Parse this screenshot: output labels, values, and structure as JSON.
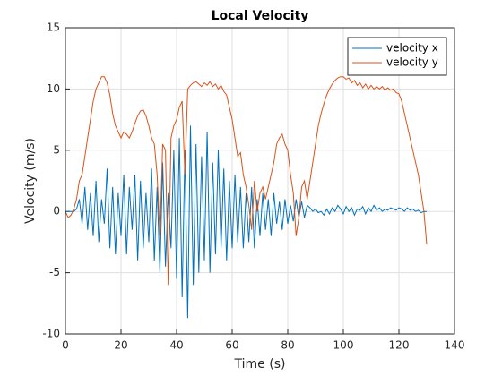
{
  "chart_data": {
    "type": "line",
    "title": "Local Velocity",
    "xlabel": "Time (s)",
    "ylabel": "Velocity (m/s)",
    "x": [
      0,
      1,
      2,
      3,
      4,
      5,
      6,
      7,
      8,
      9,
      10,
      11,
      12,
      13,
      14,
      15,
      16,
      17,
      18,
      19,
      20,
      21,
      22,
      23,
      24,
      25,
      26,
      27,
      28,
      29,
      30,
      31,
      32,
      33,
      34,
      35,
      36,
      37,
      38,
      39,
      40,
      41,
      42,
      43,
      44,
      45,
      46,
      47,
      48,
      49,
      50,
      51,
      52,
      53,
      54,
      55,
      56,
      57,
      58,
      59,
      60,
      61,
      62,
      63,
      64,
      65,
      66,
      67,
      68,
      69,
      70,
      71,
      72,
      73,
      74,
      75,
      76,
      77,
      78,
      79,
      80,
      81,
      82,
      83,
      84,
      85,
      86,
      87,
      88,
      89,
      90,
      91,
      92,
      93,
      94,
      95,
      96,
      97,
      98,
      99,
      100,
      101,
      102,
      103,
      104,
      105,
      106,
      107,
      108,
      109,
      110,
      111,
      112,
      113,
      114,
      115,
      116,
      117,
      118,
      119,
      120,
      121,
      122,
      123,
      124,
      125,
      126,
      127,
      128,
      129,
      130
    ],
    "series": [
      {
        "name": "velocity x",
        "color": "#0072bd",
        "values": [
          0,
          0,
          0,
          0,
          0.2,
          1,
          -1,
          2,
          -1.5,
          1.5,
          -2,
          2.5,
          -2.5,
          1,
          -1,
          3.5,
          -3,
          2,
          -3.5,
          1.5,
          -2,
          3,
          -3.5,
          2,
          -1.5,
          3,
          -4,
          2.5,
          -3,
          1.5,
          -2.5,
          3.5,
          -4,
          2,
          -5,
          4,
          -4.5,
          1.5,
          -3,
          5,
          -5.5,
          6,
          -7,
          5,
          -8.7,
          7,
          -6,
          5.5,
          -5,
          4.5,
          -4,
          6.5,
          -5,
          4,
          -3.5,
          5,
          -3,
          3.5,
          -4,
          2.5,
          -3,
          3,
          -2.5,
          2,
          -3,
          1.5,
          -2.5,
          2,
          -3,
          1,
          -2,
          1.5,
          -1.5,
          1,
          -2,
          1.5,
          -1,
          0.8,
          -1.5,
          1,
          -1,
          0.5,
          -0.8,
          1,
          -0.5,
          0.8,
          -0.5,
          0.5,
          0.3,
          0,
          0.2,
          -0.1,
          0,
          -0.3,
          0.2,
          -0.2,
          0.3,
          0,
          0.5,
          0.2,
          -0.2,
          0.4,
          0,
          0.3,
          -0.3,
          0.2,
          0.1,
          0.4,
          -0.2,
          0.3,
          0,
          0.5,
          0.1,
          0.3,
          0,
          0.2,
          0.1,
          0.3,
          0.2,
          0.1,
          0.3,
          0.2,
          0,
          0.3,
          0.1,
          0.2,
          0,
          0.1,
          -0.1,
          0,
          0
        ]
      },
      {
        "name": "velocity y",
        "color": "#d95319",
        "values": [
          0,
          -0.5,
          -0.3,
          0.2,
          1,
          2.5,
          3,
          4.5,
          6,
          7.5,
          9,
          10,
          10.5,
          11,
          11,
          10.5,
          9.5,
          8,
          7,
          6.5,
          6,
          6.5,
          6.3,
          6,
          6.5,
          7.2,
          7.8,
          8.2,
          8.3,
          7.8,
          7,
          6,
          5.5,
          3,
          -2,
          5.5,
          5,
          -6,
          6,
          7,
          7.5,
          8.5,
          9,
          3,
          10,
          10.3,
          10.5,
          10.6,
          10.4,
          10.2,
          10.5,
          10.3,
          10.6,
          10.2,
          10.4,
          10,
          10.3,
          9.8,
          9.5,
          8.5,
          7.5,
          6,
          4.5,
          4.8,
          3,
          2,
          0.5,
          -1.5,
          2.5,
          0,
          1.5,
          2,
          1,
          2,
          3,
          4,
          5.5,
          6,
          6.3,
          5.5,
          5,
          3,
          1.5,
          -2,
          -0.5,
          2,
          2.5,
          1,
          2.5,
          4,
          5.5,
          7,
          8,
          8.8,
          9.5,
          10,
          10.4,
          10.7,
          10.9,
          11,
          11,
          10.8,
          10.9,
          10.5,
          10.7,
          10.3,
          10.5,
          10.1,
          10.4,
          10,
          10.3,
          10,
          10.2,
          10,
          10.2,
          9.9,
          10.1,
          9.9,
          10,
          9.7,
          9.6,
          9,
          8,
          7,
          6,
          5,
          4,
          3,
          1.5,
          0,
          -2.7
        ]
      }
    ],
    "xlim": [
      0,
      140
    ],
    "xticks": [
      0,
      20,
      40,
      60,
      80,
      100,
      120,
      140
    ],
    "ylim": [
      -10,
      15
    ],
    "yticks": [
      -10,
      -5,
      0,
      5,
      10,
      15
    ],
    "grid": true,
    "legend": "northeast"
  }
}
